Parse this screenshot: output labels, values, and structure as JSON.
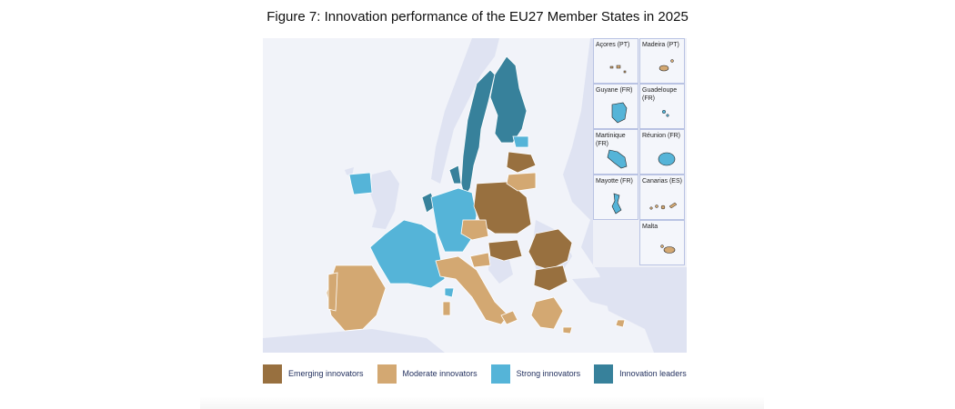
{
  "title": "Figure 7: Innovation performance of the EU27 Member States in 2025",
  "colors": {
    "emerging": "#98703f",
    "moderate": "#d3a872",
    "strong": "#55b4d8",
    "leaders": "#37819b",
    "sea": "#f1f3f9",
    "non_eu_land": "#dfe3f2",
    "border": "#ffffff"
  },
  "insets": [
    {
      "label": "Açores (PT)",
      "category": "moderate"
    },
    {
      "label": "Madeira (PT)",
      "category": "moderate"
    },
    {
      "label": "Guyane (FR)",
      "category": "strong"
    },
    {
      "label": "Guadeloupe (FR)",
      "category": "strong"
    },
    {
      "label": "Martinique (FR)",
      "category": "strong"
    },
    {
      "label": "Réunion (FR)",
      "category": "strong"
    },
    {
      "label": "Mayotte (FR)",
      "category": "strong"
    },
    {
      "label": "Canarias (ES)",
      "category": "moderate"
    },
    {
      "label": "Malta",
      "category": "moderate"
    }
  ],
  "legend": [
    {
      "key": "emerging",
      "label": "Emerging innovators"
    },
    {
      "key": "moderate",
      "label": "Moderate innovators"
    },
    {
      "key": "strong",
      "label": "Strong innovators"
    },
    {
      "key": "leaders",
      "label": "Innovation leaders"
    }
  ]
}
